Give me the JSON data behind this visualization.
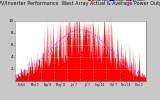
{
  "title": "Solar PV/Inverter Performance  West Array Actual & Average Power Output",
  "title_fontsize": 3.5,
  "bg_color": "#c8c8c8",
  "plot_bg_color": "#ffffff",
  "grid_color": "#aaaaaa",
  "ylim": [
    0,
    10
  ],
  "yticks": [
    2,
    4,
    6,
    8,
    10
  ],
  "ytick_labels": [
    "2",
    "4",
    "6",
    "8",
    "10"
  ],
  "xtick_labels": [
    "Feb 6",
    "Mar 7",
    "Apr 8",
    "May 11",
    "Jun 7",
    "Jul 7",
    "Sep 14",
    "Oct 7",
    "Nov 14",
    "Dec 7"
  ],
  "actual_color": "#ff0000",
  "avg_color": "#00aaff",
  "avg2_color": "#ff00ff",
  "legend_labels": [
    "Actual kWh",
    "Average",
    "Avg+Stdev"
  ],
  "legend_colors": [
    "#ff0000",
    "#0000ff",
    "#ff00aa"
  ],
  "n_points": 300,
  "seed": 42,
  "envelope_peak_day": 150,
  "envelope_sigma": 70,
  "envelope_max": 9.5,
  "avg_scale": 0.78,
  "noise_base": 0.35,
  "noise_scale": 0.65,
  "n_spikes": 25
}
